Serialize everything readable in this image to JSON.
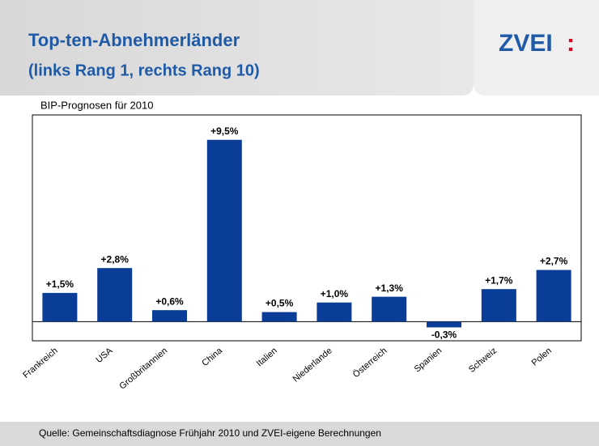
{
  "header": {
    "title": "Top-ten-Abnehmerländer",
    "subtitle": "(links Rang 1, rechts Rang 10)",
    "logo": "ZVEI",
    "logo_mark": ":"
  },
  "chart_data": {
    "type": "bar",
    "title": "BIP-Prognosen für 2010",
    "categories": [
      "Frankreich",
      "USA",
      "Großbritannien",
      "China",
      "Italien",
      "Niederlande",
      "Österreich",
      "Spanien",
      "Schweiz",
      "Polen"
    ],
    "values": [
      1.5,
      2.8,
      0.6,
      9.5,
      0.5,
      1.0,
      1.3,
      -0.3,
      1.7,
      2.7
    ],
    "value_labels": [
      "+1,5%",
      "+2,8%",
      "+0,6%",
      "+9,5%",
      "+0,5%",
      "+1,0%",
      "+1,3%",
      "-0,3%",
      "+1,7%",
      "+2,7%"
    ],
    "color": "#0a3d97",
    "ylim": [
      -1,
      10.8
    ]
  },
  "footer": {
    "source": "Quelle: Gemeinschaftsdiagnose Frühjahr 2010 und ZVEI-eigene Berechnungen"
  }
}
